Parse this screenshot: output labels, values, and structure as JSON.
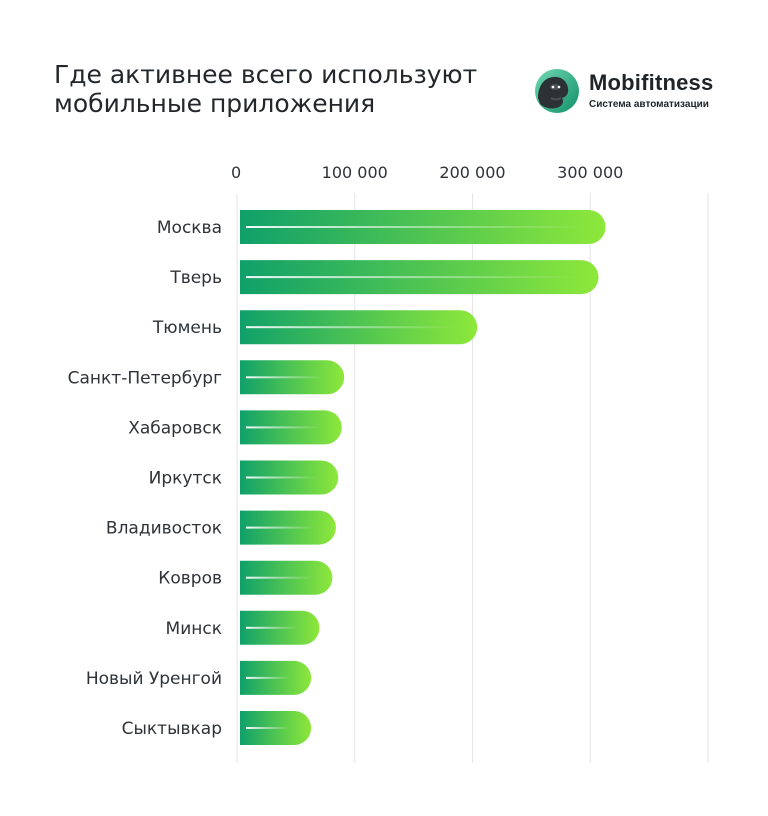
{
  "header": {
    "title_lines": [
      "Где активнее всего используют",
      "мобильные приложения"
    ]
  },
  "brand": {
    "name": "Mobifitness",
    "tagline": "Система автоматизации",
    "icon": "gorilla-logo-icon",
    "colors": {
      "circle_light": "#5fd0a8",
      "circle_dark": "#15936a",
      "ape": "#2c3135"
    }
  },
  "chart_data": {
    "type": "bar",
    "orientation": "horizontal",
    "title": "Где активнее всего используют мобильные приложения",
    "categories": [
      "Москва",
      "Тверь",
      "Тюмень",
      "Санкт-Петербург",
      "Хабаровск",
      "Иркутск",
      "Владивосток",
      "Ковров",
      "Минск",
      "Новый Уренгой",
      "Сыктывкар"
    ],
    "values": [
      313000,
      307000,
      204000,
      91000,
      89000,
      86000,
      84000,
      81000,
      70000,
      63000,
      63000
    ],
    "xlim": [
      0,
      400000
    ],
    "x_ticks": [
      0,
      100000,
      200000,
      300000
    ],
    "x_tick_labels": [
      "0",
      "100 000",
      "200 000",
      "300 000"
    ],
    "axis_position": "top",
    "grid": true,
    "bar_gradient": [
      "#0fa06a",
      "#8ee83a"
    ]
  }
}
